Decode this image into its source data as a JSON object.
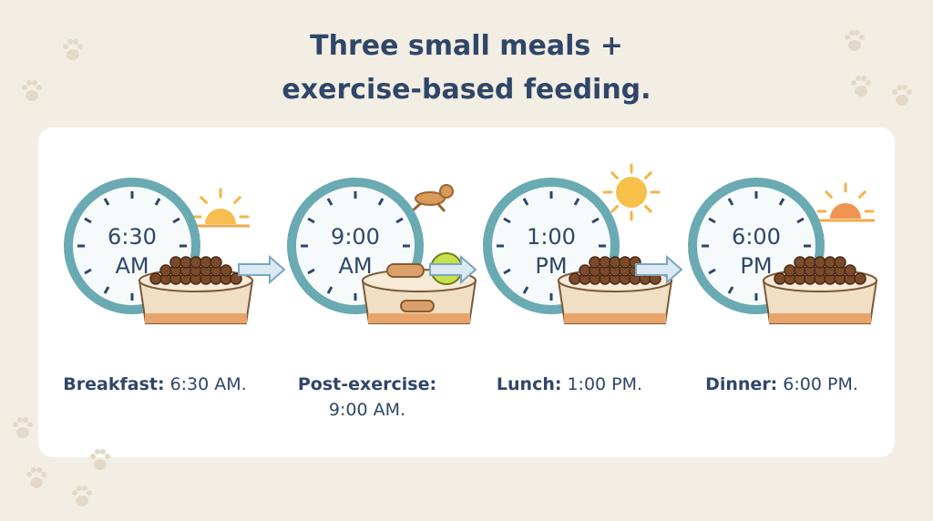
{
  "header": {
    "title": [
      "Three small meals +",
      "exercise-based feeding."
    ]
  },
  "steps": [
    {
      "clock_time": "6:30",
      "clock_period": "AM",
      "label": "Breakfast:",
      "time": "6:30 AM."
    },
    {
      "clock_time": "9:00",
      "clock_period": "AM",
      "label": "Post-exercise:",
      "time": "9:00 AM."
    },
    {
      "clock_time": "1:00",
      "clock_period": "PM",
      "label": "Lunch:",
      "time": "1:00 PM."
    },
    {
      "clock_time": "6:00",
      "clock_period": "PM",
      "label": "Dinner:",
      "time": "6:00 PM."
    }
  ]
}
